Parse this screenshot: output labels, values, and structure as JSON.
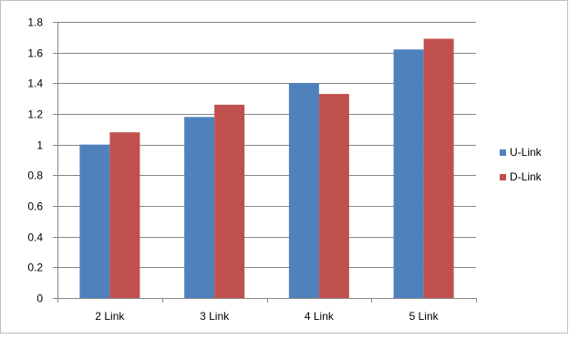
{
  "chart_data": {
    "type": "bar",
    "title": "",
    "xlabel": "",
    "ylabel": "",
    "categories": [
      "2 Link",
      "3 Link",
      "4 Link",
      "5 Link"
    ],
    "series": [
      {
        "name": "U-Link",
        "color": "#4F81BD",
        "values": [
          1.0,
          1.18,
          1.4,
          1.62
        ]
      },
      {
        "name": "D-Link",
        "color": "#C0504D",
        "values": [
          1.08,
          1.26,
          1.33,
          1.69
        ]
      }
    ],
    "ylim": [
      0,
      1.8
    ],
    "yticks": [
      "0",
      "0.2",
      "0.4",
      "0.6",
      "0.8",
      "1",
      "1.2",
      "1.4",
      "1.6",
      "1.8"
    ],
    "grid": true,
    "legend_position": "right"
  }
}
